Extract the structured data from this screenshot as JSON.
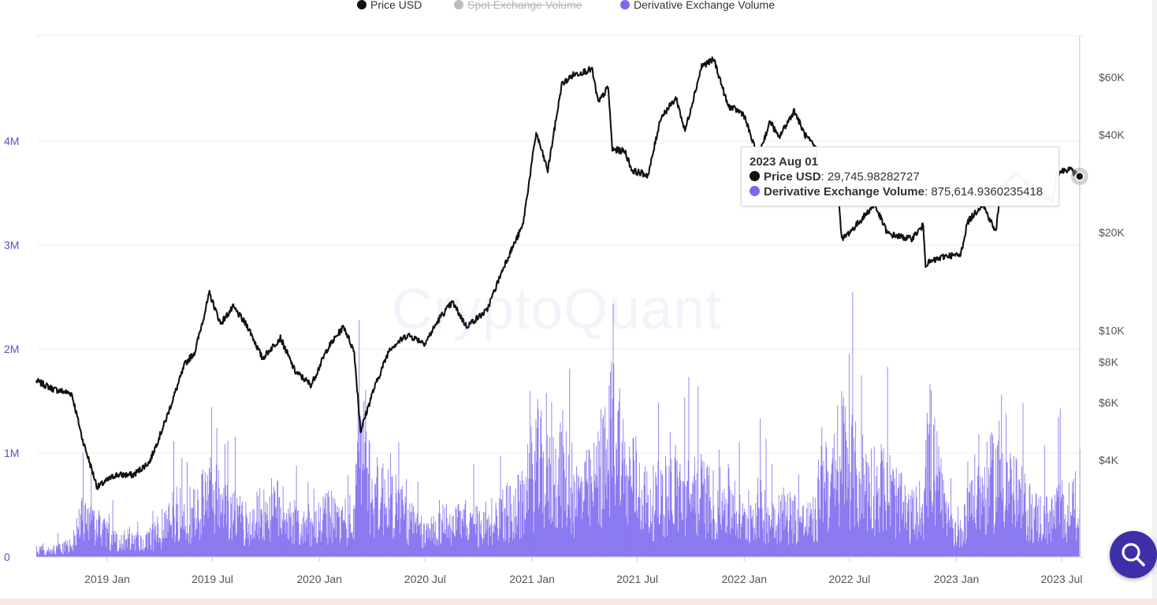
{
  "legend": {
    "items": [
      {
        "label": "Price USD",
        "color": "#111111",
        "active": true
      },
      {
        "label": "Spot Exchange Volume",
        "color": "#bdbdbd",
        "active": false
      },
      {
        "label": "Derivative Exchange Volume",
        "color": "#7b68ee",
        "active": true
      }
    ]
  },
  "watermark": "CryptoQuant",
  "tooltip": {
    "date": "2023 Aug 01",
    "price_label": "Price USD",
    "price_value": "29,745.98282727",
    "volume_label": "Derivative Exchange Volume",
    "volume_value": "875,614.9360235418"
  },
  "chart_data": {
    "type": "line+bar",
    "x_range": [
      "2018-09-01",
      "2023-08-08"
    ],
    "x_ticks": [
      {
        "date": "2019-01-01",
        "label": "2019 Jan"
      },
      {
        "date": "2019-07-01",
        "label": "2019 Jul"
      },
      {
        "date": "2020-01-01",
        "label": "2020 Jan"
      },
      {
        "date": "2020-07-01",
        "label": "2020 Jul"
      },
      {
        "date": "2021-01-01",
        "label": "2021 Jan"
      },
      {
        "date": "2021-07-01",
        "label": "2021 Jul"
      },
      {
        "date": "2022-01-01",
        "label": "2022 Jan"
      },
      {
        "date": "2022-07-01",
        "label": "2022 Jul"
      },
      {
        "date": "2023-01-01",
        "label": "2023 Jan"
      },
      {
        "date": "2023-07-01",
        "label": "2023 Jul"
      }
    ],
    "y_left": {
      "min": 0,
      "max": 4000000,
      "ticks": [
        {
          "value": 0,
          "label": "0"
        },
        {
          "value": 1000000,
          "label": "1M"
        },
        {
          "value": 2000000,
          "label": "2M"
        },
        {
          "value": 3000000,
          "label": "3M"
        },
        {
          "value": 4000000,
          "label": "4M"
        }
      ]
    },
    "y_right": {
      "scale": "log",
      "ticks": [
        {
          "value": 4000,
          "label": "$4K"
        },
        {
          "value": 6000,
          "label": "$6K"
        },
        {
          "value": 8000,
          "label": "$8K"
        },
        {
          "value": 10000,
          "label": "$10K"
        },
        {
          "value": 20000,
          "label": "$20K"
        },
        {
          "value": 40000,
          "label": "$40K"
        },
        {
          "value": 60000,
          "label": "$60K"
        }
      ]
    },
    "grid": true,
    "series": [
      {
        "name": "Price USD",
        "type": "line",
        "axis": "right",
        "color": "#111111",
        "points": [
          [
            "2018-09-01",
            7000
          ],
          [
            "2018-10-01",
            6600
          ],
          [
            "2018-11-01",
            6400
          ],
          [
            "2018-11-20",
            4600
          ],
          [
            "2018-12-15",
            3300
          ],
          [
            "2019-01-15",
            3600
          ],
          [
            "2019-02-15",
            3600
          ],
          [
            "2019-03-15",
            3950
          ],
          [
            "2019-04-10",
            5200
          ],
          [
            "2019-05-15",
            7900
          ],
          [
            "2019-06-01",
            8600
          ],
          [
            "2019-06-26",
            13000
          ],
          [
            "2019-07-15",
            10500
          ],
          [
            "2019-08-06",
            11800
          ],
          [
            "2019-09-01",
            10200
          ],
          [
            "2019-09-25",
            8200
          ],
          [
            "2019-10-26",
            9500
          ],
          [
            "2019-11-20",
            7500
          ],
          [
            "2019-12-18",
            6800
          ],
          [
            "2020-01-15",
            8800
          ],
          [
            "2020-02-12",
            10300
          ],
          [
            "2020-03-01",
            8600
          ],
          [
            "2020-03-12",
            4900
          ],
          [
            "2020-04-01",
            6400
          ],
          [
            "2020-05-01",
            8800
          ],
          [
            "2020-06-01",
            9700
          ],
          [
            "2020-07-01",
            9150
          ],
          [
            "2020-07-27",
            11000
          ],
          [
            "2020-08-17",
            12200
          ],
          [
            "2020-09-10",
            10300
          ],
          [
            "2020-10-15",
            11500
          ],
          [
            "2020-11-15",
            16000
          ],
          [
            "2020-12-16",
            21000
          ],
          [
            "2021-01-08",
            40500
          ],
          [
            "2021-01-28",
            31000
          ],
          [
            "2021-02-21",
            57000
          ],
          [
            "2021-03-13",
            61000
          ],
          [
            "2021-04-14",
            63500
          ],
          [
            "2021-04-25",
            50000
          ],
          [
            "2021-05-12",
            56000
          ],
          [
            "2021-05-19",
            36000
          ],
          [
            "2021-06-10",
            35500
          ],
          [
            "2021-06-22",
            31000
          ],
          [
            "2021-07-20",
            30000
          ],
          [
            "2021-08-10",
            45000
          ],
          [
            "2021-09-06",
            51800
          ],
          [
            "2021-09-21",
            41000
          ],
          [
            "2021-10-20",
            65000
          ],
          [
            "2021-11-10",
            68000
          ],
          [
            "2021-12-04",
            49000
          ],
          [
            "2021-12-31",
            46300
          ],
          [
            "2022-01-24",
            34000
          ],
          [
            "2022-02-15",
            44000
          ],
          [
            "2022-03-01",
            39000
          ],
          [
            "2022-03-28",
            47400
          ],
          [
            "2022-04-15",
            40000
          ],
          [
            "2022-05-05",
            36000
          ],
          [
            "2022-05-12",
            28000
          ],
          [
            "2022-06-10",
            29500
          ],
          [
            "2022-06-18",
            19000
          ],
          [
            "2022-07-10",
            20800
          ],
          [
            "2022-08-13",
            24400
          ],
          [
            "2022-09-05",
            19800
          ],
          [
            "2022-10-15",
            19100
          ],
          [
            "2022-11-05",
            21000
          ],
          [
            "2022-11-09",
            16000
          ],
          [
            "2022-12-15",
            17000
          ],
          [
            "2023-01-08",
            17000
          ],
          [
            "2023-01-20",
            21500
          ],
          [
            "2023-02-15",
            24500
          ],
          [
            "2023-03-10",
            20000
          ],
          [
            "2023-03-18",
            27500
          ],
          [
            "2023-04-14",
            30400
          ],
          [
            "2023-05-15",
            27000
          ],
          [
            "2023-06-15",
            25000
          ],
          [
            "2023-06-23",
            30500
          ],
          [
            "2023-07-13",
            31400
          ],
          [
            "2023-08-01",
            29745.98
          ]
        ]
      },
      {
        "name": "Derivative Exchange Volume",
        "type": "bar",
        "axis": "left",
        "color": "#7b68ee",
        "points": [
          [
            "2018-09-01",
            90000
          ],
          [
            "2018-10-01",
            100000
          ],
          [
            "2018-11-01",
            160000
          ],
          [
            "2018-11-20",
            550000
          ],
          [
            "2018-12-15",
            380000
          ],
          [
            "2019-01-15",
            220000
          ],
          [
            "2019-02-15",
            230000
          ],
          [
            "2019-03-15",
            240000
          ],
          [
            "2019-04-10",
            420000
          ],
          [
            "2019-05-15",
            700000
          ],
          [
            "2019-06-01",
            550000
          ],
          [
            "2019-06-26",
            900000
          ],
          [
            "2019-07-15",
            650000
          ],
          [
            "2019-08-06",
            550000
          ],
          [
            "2019-09-01",
            420000
          ],
          [
            "2019-09-25",
            620000
          ],
          [
            "2019-10-26",
            650000
          ],
          [
            "2019-11-20",
            450000
          ],
          [
            "2019-12-18",
            350000
          ],
          [
            "2020-01-15",
            550000
          ],
          [
            "2020-02-12",
            480000
          ],
          [
            "2020-03-01",
            520000
          ],
          [
            "2020-03-12",
            1900000
          ],
          [
            "2020-04-01",
            800000
          ],
          [
            "2020-05-01",
            850000
          ],
          [
            "2020-06-01",
            500000
          ],
          [
            "2020-07-01",
            280000
          ],
          [
            "2020-07-27",
            500000
          ],
          [
            "2020-08-17",
            400000
          ],
          [
            "2020-09-10",
            480000
          ],
          [
            "2020-10-15",
            360000
          ],
          [
            "2020-11-15",
            600000
          ],
          [
            "2020-12-16",
            700000
          ],
          [
            "2021-01-08",
            1300000
          ],
          [
            "2021-01-28",
            1000000
          ],
          [
            "2021-02-21",
            1200000
          ],
          [
            "2021-03-13",
            800000
          ],
          [
            "2021-04-14",
            900000
          ],
          [
            "2021-04-25",
            1100000
          ],
          [
            "2021-05-12",
            1300000
          ],
          [
            "2021-05-19",
            2200000
          ],
          [
            "2021-06-10",
            1000000
          ],
          [
            "2021-06-22",
            1100000
          ],
          [
            "2021-07-20",
            700000
          ],
          [
            "2021-08-10",
            800000
          ],
          [
            "2021-09-06",
            950000
          ],
          [
            "2021-09-21",
            800000
          ],
          [
            "2021-10-20",
            850000
          ],
          [
            "2021-11-10",
            700000
          ],
          [
            "2021-12-04",
            750000
          ],
          [
            "2021-12-31",
            450000
          ],
          [
            "2022-01-24",
            650000
          ],
          [
            "2022-02-15",
            550000
          ],
          [
            "2022-03-01",
            600000
          ],
          [
            "2022-03-28",
            550000
          ],
          [
            "2022-04-15",
            450000
          ],
          [
            "2022-05-05",
            500000
          ],
          [
            "2022-05-12",
            1200000
          ],
          [
            "2022-06-10",
            800000
          ],
          [
            "2022-06-18",
            1500000
          ],
          [
            "2022-07-10",
            1100000
          ],
          [
            "2022-08-13",
            950000
          ],
          [
            "2022-09-05",
            900000
          ],
          [
            "2022-10-15",
            500000
          ],
          [
            "2022-11-05",
            700000
          ],
          [
            "2022-11-09",
            1700000
          ],
          [
            "2022-12-15",
            450000
          ],
          [
            "2023-01-08",
            300000
          ],
          [
            "2023-01-20",
            800000
          ],
          [
            "2023-02-15",
            850000
          ],
          [
            "2023-03-10",
            1100000
          ],
          [
            "2023-03-18",
            1200000
          ],
          [
            "2023-04-14",
            800000
          ],
          [
            "2023-05-15",
            550000
          ],
          [
            "2023-06-15",
            500000
          ],
          [
            "2023-06-23",
            700000
          ],
          [
            "2023-07-13",
            600000
          ],
          [
            "2023-08-01",
            875614.94
          ]
        ]
      }
    ]
  }
}
